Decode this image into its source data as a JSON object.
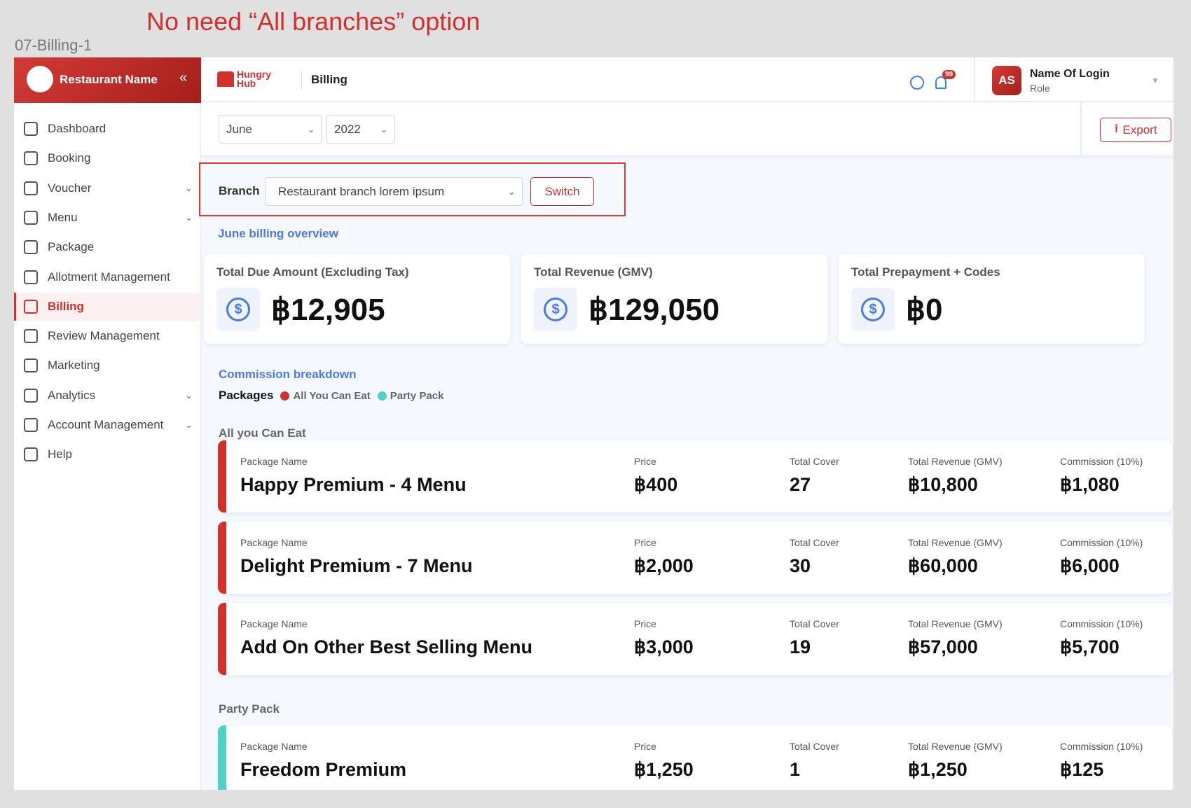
{
  "annotation": {
    "note": "No need “All branches” option",
    "frame_label": "07-Billing-1"
  },
  "sidebar": {
    "restaurant_name": "Restaurant Name",
    "collapse_icon": "«",
    "items": [
      {
        "label": "Dashboard",
        "icon": "pie-chart-icon"
      },
      {
        "label": "Booking",
        "icon": "clipboard-icon",
        "expandable": false
      },
      {
        "label": "Voucher",
        "icon": "ticket-icon",
        "expandable": true
      },
      {
        "label": "Menu",
        "icon": "book-icon",
        "expandable": true
      },
      {
        "label": "Package",
        "icon": "document-icon"
      },
      {
        "label": "Allotment Management",
        "icon": "calendar-icon"
      },
      {
        "label": "Billing",
        "icon": "billing-icon",
        "active": true
      },
      {
        "label": "Review Management",
        "icon": "chat-icon"
      },
      {
        "label": "Marketing",
        "icon": "megaphone-icon"
      },
      {
        "label": "Analytics",
        "icon": "chart-icon",
        "expandable": true
      },
      {
        "label": "Account Management",
        "icon": "user-icon",
        "expandable": true
      },
      {
        "label": "Help",
        "icon": "help-icon"
      }
    ]
  },
  "header": {
    "logo_text_1": "Hungry",
    "logo_text_2": "Hub",
    "title": "Billing",
    "notification_count": "99",
    "user": {
      "initials": "AS",
      "name": "Name Of Login",
      "role": "Role"
    }
  },
  "filters": {
    "month": "June",
    "year": "2022",
    "export_label": "Export"
  },
  "branch": {
    "label": "Branch",
    "selected": "Restaurant branch lorem ipsum",
    "switch_label": "Switch"
  },
  "overview": {
    "title": "June billing overview",
    "cards": [
      {
        "title": "Total Due Amount (Excluding Tax)",
        "value": "฿12,905"
      },
      {
        "title": "Total Revenue (GMV)",
        "value": "฿129,050"
      },
      {
        "title": "Total Prepayment + Codes",
        "value": "฿0"
      }
    ]
  },
  "commission": {
    "title": "Commission breakdown",
    "packages_label": "Packages",
    "legend": [
      {
        "label": "All You Can Eat",
        "color": "#d0312d"
      },
      {
        "label": "Party Pack",
        "color": "#4fd1c5"
      }
    ],
    "columns": {
      "name": "Package Name",
      "price": "Price",
      "cover": "Total Cover",
      "revenue": "Total Revenue (GMV)",
      "commission": "Commission (10%)"
    },
    "groups": [
      {
        "title": "All you Can Eat",
        "rows": [
          {
            "name": "Happy Premium - 4 Menu",
            "price": "฿400",
            "cover": "27",
            "revenue": "฿10,800",
            "commission": "฿1,080"
          },
          {
            "name": "Delight Premium - 7 Menu",
            "price": "฿2,000",
            "cover": "30",
            "revenue": "฿60,000",
            "commission": "฿6,000"
          },
          {
            "name": "Add On Other Best Selling Menu",
            "price": "฿3,000",
            "cover": "19",
            "revenue": "฿57,000",
            "commission": "฿5,700"
          }
        ]
      },
      {
        "title": "Party Pack",
        "rows": [
          {
            "name": "Freedom Premium",
            "price": "฿1,250",
            "cover": "1",
            "revenue": "฿1,250",
            "commission": "฿125"
          }
        ]
      }
    ]
  }
}
